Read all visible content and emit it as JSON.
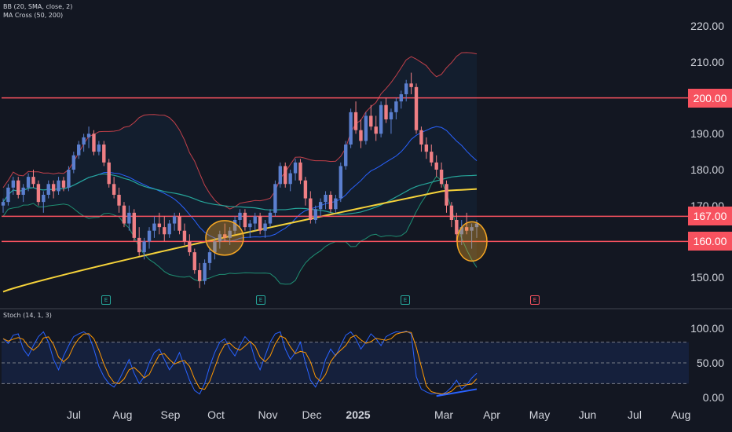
{
  "legend": {
    "bb": "BB (20, SMA, close, 2)",
    "ma": "MA Cross (50, 200)",
    "stoch": "Stoch (14, 1, 3)"
  },
  "price_axis": {
    "ticks": [
      "220.00",
      "210.00",
      "190.00",
      "180.00",
      "170.00",
      "150.00"
    ]
  },
  "levels": [
    {
      "label": "200.00",
      "price": 200.0,
      "color": "#f7525f"
    },
    {
      "label": "167.00",
      "price": 167.0,
      "color": "#f7525f"
    },
    {
      "label": "160.00",
      "price": 160.0,
      "color": "#f7525f"
    }
  ],
  "stoch_axis": {
    "ticks": [
      "100.00",
      "50.00",
      "0.00"
    ],
    "band": [
      20,
      80
    ]
  },
  "time_axis": {
    "labels": [
      {
        "text": "Jul",
        "bold": false
      },
      {
        "text": "Aug",
        "bold": false
      },
      {
        "text": "Sep",
        "bold": false
      },
      {
        "text": "Oct",
        "bold": false
      },
      {
        "text": "Nov",
        "bold": false
      },
      {
        "text": "Dec",
        "bold": false
      },
      {
        "text": "2025",
        "bold": true
      },
      {
        "text": "Mar",
        "bold": false
      },
      {
        "text": "Apr",
        "bold": false
      },
      {
        "text": "May",
        "bold": false
      },
      {
        "text": "Jun",
        "bold": false
      },
      {
        "text": "Jul",
        "bold": false
      },
      {
        "text": "Aug",
        "bold": false
      }
    ]
  },
  "events": [
    {
      "letter": "E",
      "color": "#26a69a"
    },
    {
      "letter": "E",
      "color": "#26a69a"
    },
    {
      "letter": "E",
      "color": "#26a69a"
    },
    {
      "letter": "E",
      "color": "#f7525f"
    }
  ],
  "colors": {
    "up": "#5b7fcf",
    "down": "#ef7f84",
    "bb_upper": "#c2404a",
    "bb_lower": "#1f8f73",
    "bb_basis": "#2962ff",
    "ma50": "#26a69a",
    "ma200": "#f5d23a",
    "stoch_k": "#2962ff",
    "stoch_d": "#ff9800",
    "circle": "#f5a623"
  },
  "chart_data": {
    "type": "candlestick",
    "price_range": [
      145,
      222
    ],
    "stoch_range": [
      0,
      100
    ],
    "candles": [
      [
        170,
        172,
        168,
        171
      ],
      [
        171,
        176,
        170,
        175
      ],
      [
        175,
        178,
        173,
        177
      ],
      [
        177,
        178,
        172,
        173
      ],
      [
        173,
        176,
        171,
        175
      ],
      [
        175,
        179,
        174,
        178
      ],
      [
        178,
        180,
        175,
        176
      ],
      [
        176,
        177,
        170,
        171
      ],
      [
        171,
        174,
        168,
        173
      ],
      [
        173,
        177,
        172,
        176
      ],
      [
        176,
        177,
        172,
        174
      ],
      [
        174,
        178,
        173,
        177
      ],
      [
        177,
        178,
        174,
        175
      ],
      [
        175,
        181,
        174,
        180
      ],
      [
        180,
        185,
        179,
        184
      ],
      [
        184,
        188,
        183,
        187
      ],
      [
        187,
        190,
        185,
        189
      ],
      [
        189,
        192,
        186,
        190
      ],
      [
        190,
        191,
        184,
        185
      ],
      [
        185,
        188,
        184,
        187
      ],
      [
        187,
        188,
        181,
        182
      ],
      [
        182,
        183,
        175,
        176
      ],
      [
        176,
        178,
        172,
        173
      ],
      [
        173,
        175,
        168,
        170
      ],
      [
        170,
        171,
        164,
        165
      ],
      [
        165,
        170,
        163,
        168
      ],
      [
        168,
        169,
        160,
        161
      ],
      [
        161,
        164,
        156,
        157
      ],
      [
        157,
        161,
        155,
        160
      ],
      [
        160,
        164,
        158,
        163
      ],
      [
        163,
        167,
        161,
        165
      ],
      [
        165,
        168,
        162,
        164
      ],
      [
        164,
        167,
        160,
        162
      ],
      [
        162,
        166,
        161,
        165
      ],
      [
        165,
        168,
        163,
        167
      ],
      [
        167,
        168,
        162,
        163
      ],
      [
        163,
        165,
        159,
        160
      ],
      [
        160,
        162,
        156,
        157
      ],
      [
        157,
        158,
        151,
        152
      ],
      [
        152,
        154,
        147,
        149
      ],
      [
        149,
        155,
        148,
        154
      ],
      [
        154,
        158,
        152,
        157
      ],
      [
        157,
        161,
        155,
        160
      ],
      [
        160,
        163,
        158,
        162
      ],
      [
        162,
        165,
        160,
        161
      ],
      [
        161,
        164,
        159,
        163
      ],
      [
        163,
        167,
        162,
        166
      ],
      [
        166,
        169,
        164,
        168
      ],
      [
        168,
        169,
        163,
        164
      ],
      [
        164,
        166,
        161,
        165
      ],
      [
        165,
        168,
        163,
        167
      ],
      [
        167,
        168,
        162,
        163
      ],
      [
        163,
        166,
        161,
        165
      ],
      [
        165,
        169,
        164,
        168
      ],
      [
        168,
        177,
        167,
        176
      ],
      [
        176,
        182,
        175,
        181
      ],
      [
        181,
        182,
        175,
        176
      ],
      [
        176,
        180,
        174,
        179
      ],
      [
        179,
        183,
        177,
        182
      ],
      [
        182,
        183,
        176,
        177
      ],
      [
        177,
        178,
        170,
        172
      ],
      [
        172,
        174,
        165,
        166
      ],
      [
        166,
        170,
        165,
        169
      ],
      [
        169,
        172,
        167,
        171
      ],
      [
        171,
        174,
        169,
        173
      ],
      [
        173,
        174,
        168,
        169
      ],
      [
        169,
        173,
        168,
        172
      ],
      [
        172,
        182,
        171,
        181
      ],
      [
        181,
        188,
        180,
        187
      ],
      [
        187,
        197,
        186,
        196
      ],
      [
        196,
        199,
        190,
        191
      ],
      [
        191,
        194,
        186,
        188
      ],
      [
        188,
        196,
        187,
        195
      ],
      [
        195,
        198,
        191,
        192
      ],
      [
        192,
        195,
        188,
        190
      ],
      [
        190,
        199,
        189,
        198
      ],
      [
        198,
        200,
        193,
        194
      ],
      [
        194,
        197,
        190,
        196
      ],
      [
        196,
        200,
        194,
        199
      ],
      [
        199,
        202,
        197,
        201
      ],
      [
        201,
        205,
        199,
        204
      ],
      [
        204,
        207,
        201,
        203
      ],
      [
        203,
        204,
        190,
        191
      ],
      [
        191,
        192,
        185,
        187
      ],
      [
        187,
        189,
        183,
        185
      ],
      [
        185,
        187,
        181,
        182
      ],
      [
        182,
        184,
        178,
        180
      ],
      [
        180,
        182,
        175,
        176
      ],
      [
        176,
        177,
        168,
        170
      ],
      [
        170,
        171,
        164,
        166
      ],
      [
        166,
        168,
        160,
        162
      ],
      [
        162,
        166,
        159,
        164
      ],
      [
        164,
        168,
        162,
        163
      ],
      [
        163,
        165,
        158,
        164
      ],
      [
        164,
        166,
        161,
        165
      ]
    ],
    "stoch_k": [
      85,
      78,
      90,
      92,
      70,
      60,
      75,
      88,
      95,
      80,
      55,
      40,
      60,
      75,
      88,
      92,
      95,
      90,
      70,
      45,
      30,
      20,
      15,
      25,
      40,
      55,
      35,
      20,
      30,
      50,
      65,
      70,
      55,
      40,
      50,
      65,
      45,
      25,
      10,
      5,
      20,
      45,
      65,
      80,
      85,
      70,
      60,
      75,
      88,
      80,
      55,
      40,
      60,
      80,
      92,
      95,
      70,
      55,
      65,
      80,
      50,
      25,
      15,
      30,
      55,
      70,
      60,
      75,
      90,
      95,
      85,
      70,
      80,
      92,
      85,
      75,
      88,
      92,
      95,
      94,
      96,
      92,
      30,
      12,
      8,
      5,
      6,
      4,
      8,
      15,
      25,
      12,
      18,
      28,
      35
    ]
  }
}
